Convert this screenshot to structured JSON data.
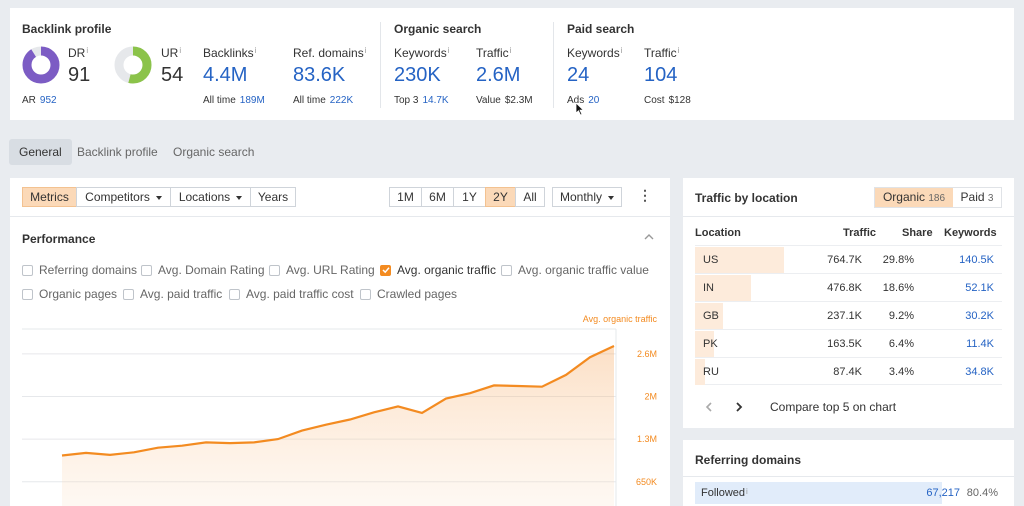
{
  "backlink_profile": {
    "title": "Backlink profile",
    "dr": {
      "label": "DR",
      "value": "91",
      "fraction": 0.91
    },
    "ur": {
      "label": "UR",
      "value": "54",
      "fraction": 0.54
    },
    "ar": {
      "label": "AR",
      "value": "952"
    },
    "backlinks": {
      "label": "Backlinks",
      "value": "4.4M",
      "sub_label": "All time",
      "sub_value": "189M"
    },
    "ref_domains": {
      "label": "Ref. domains",
      "value": "83.6K",
      "sub_label": "All time",
      "sub_value": "222K"
    }
  },
  "organic_search": {
    "title": "Organic search",
    "keywords": {
      "label": "Keywords",
      "value": "230K",
      "sub_label": "Top 3",
      "sub_value": "14.7K"
    },
    "traffic": {
      "label": "Traffic",
      "value": "2.6M",
      "sub_label": "Value",
      "sub_value": "$2.3M"
    }
  },
  "paid_search": {
    "title": "Paid search",
    "keywords": {
      "label": "Keywords",
      "value": "24",
      "sub_label": "Ads",
      "sub_value": "20"
    },
    "traffic": {
      "label": "Traffic",
      "value": "104",
      "sub_label": "Cost",
      "sub_value": "$128"
    }
  },
  "info_mark": "i",
  "tabs": [
    "General",
    "Backlink profile",
    "Organic search"
  ],
  "toolbar": {
    "metrics": "Metrics",
    "competitors": "Competitors",
    "locations": "Locations",
    "years": "Years",
    "ranges": [
      "1M",
      "6M",
      "1Y",
      "2Y",
      "All"
    ],
    "active_range": "2Y",
    "interval": "Monthly",
    "more": "⋮"
  },
  "performance": {
    "title": "Performance",
    "collapse": "^",
    "checkboxes": [
      {
        "label": "Referring domains",
        "checked": false
      },
      {
        "label": "Avg. Domain Rating",
        "checked": false
      },
      {
        "label": "Avg. URL Rating",
        "checked": false
      },
      {
        "label": "Avg. organic traffic",
        "checked": true
      },
      {
        "label": "Avg. organic traffic value",
        "checked": false
      },
      {
        "label": "Organic pages",
        "checked": false
      },
      {
        "label": "Avg. paid traffic",
        "checked": false
      },
      {
        "label": "Avg. paid traffic cost",
        "checked": false
      },
      {
        "label": "Crawled pages",
        "checked": false
      }
    ]
  },
  "chart_data": {
    "type": "area",
    "series": [
      {
        "name": "Avg. organic traffic",
        "values": [
          1.05,
          1.09,
          1.06,
          1.1,
          1.17,
          1.2,
          1.25,
          1.24,
          1.25,
          1.3,
          1.43,
          1.52,
          1.6,
          1.71,
          1.8,
          1.7,
          1.92,
          2.0,
          2.12,
          2.11,
          2.1,
          2.28,
          2.55,
          2.72
        ]
      }
    ],
    "yticks": [
      "2.6M",
      "2M",
      "1.3M",
      "650K"
    ],
    "ytick_values": [
      2.6,
      1.95,
      1.3,
      0.65
    ],
    "ylim": [
      0.25,
      3.3
    ],
    "color": "#f38b21"
  },
  "traffic_by_location": {
    "title": "Traffic by location",
    "toggle": [
      {
        "label": "Organic",
        "count": "186",
        "active": true
      },
      {
        "label": "Paid",
        "count": "3",
        "active": false
      }
    ],
    "headers": [
      "Location",
      "Traffic",
      "Share",
      "Keywords"
    ],
    "rows": [
      {
        "location": "US",
        "traffic": "764.7K",
        "share": "29.8%",
        "keywords": "140.5K",
        "share_fraction": 0.298
      },
      {
        "location": "IN",
        "traffic": "476.8K",
        "share": "18.6%",
        "keywords": "52.1K",
        "share_fraction": 0.186
      },
      {
        "location": "GB",
        "traffic": "237.1K",
        "share": "9.2%",
        "keywords": "30.2K",
        "share_fraction": 0.092
      },
      {
        "location": "PK",
        "traffic": "163.5K",
        "share": "6.4%",
        "keywords": "11.4K",
        "share_fraction": 0.064
      },
      {
        "location": "RU",
        "traffic": "87.4K",
        "share": "3.4%",
        "keywords": "34.8K",
        "share_fraction": 0.034
      }
    ],
    "compare": "Compare top 5 on chart"
  },
  "referring_domains": {
    "title": "Referring domains",
    "followed": {
      "label": "Followed",
      "value": "67,217",
      "share": "80.4%",
      "fraction": 0.804
    }
  },
  "colors": {
    "accent": "#f38b21",
    "link": "#2563c4",
    "dr": "#7c5cc4",
    "ur": "#8bc34a"
  }
}
